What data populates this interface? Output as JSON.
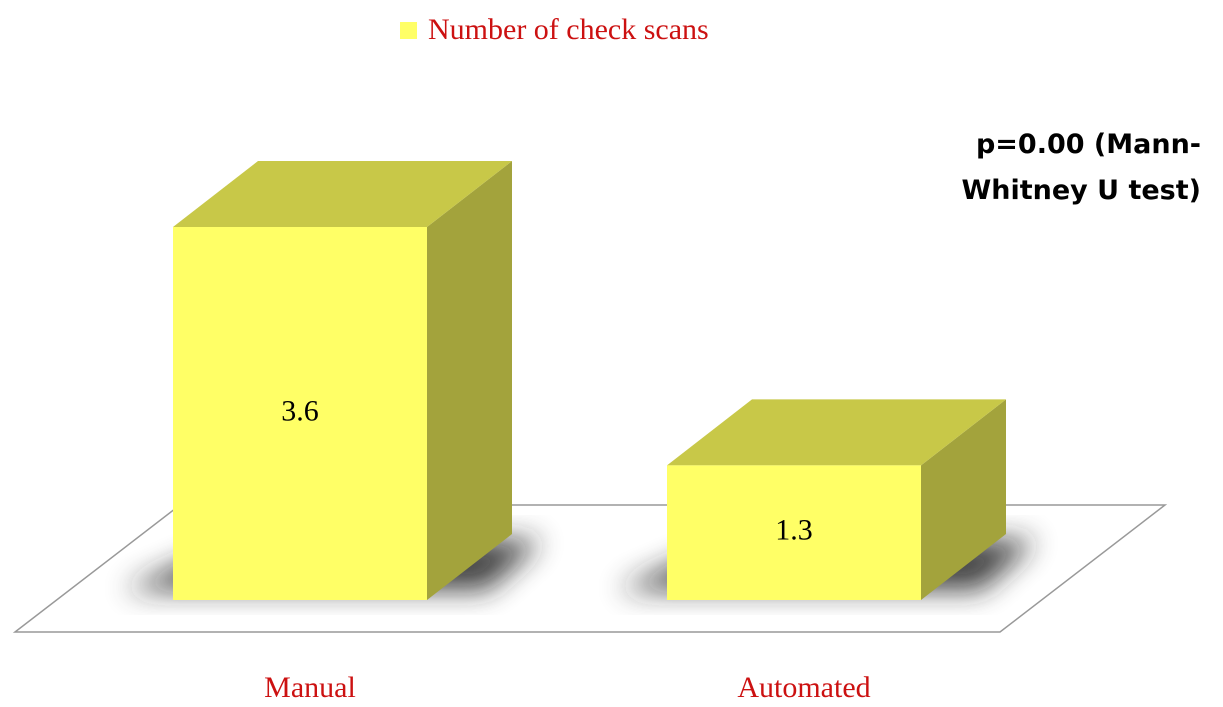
{
  "chart_data": {
    "type": "bar",
    "three_d": true,
    "categories": [
      "Manual",
      "Automated"
    ],
    "series": [
      {
        "name": "Number of check scans",
        "color": "#ffff66",
        "values": [
          3.6,
          1.3
        ]
      }
    ],
    "annotation": "p=0.00 (Mann-Whitney U test)",
    "legend": "top"
  }
}
